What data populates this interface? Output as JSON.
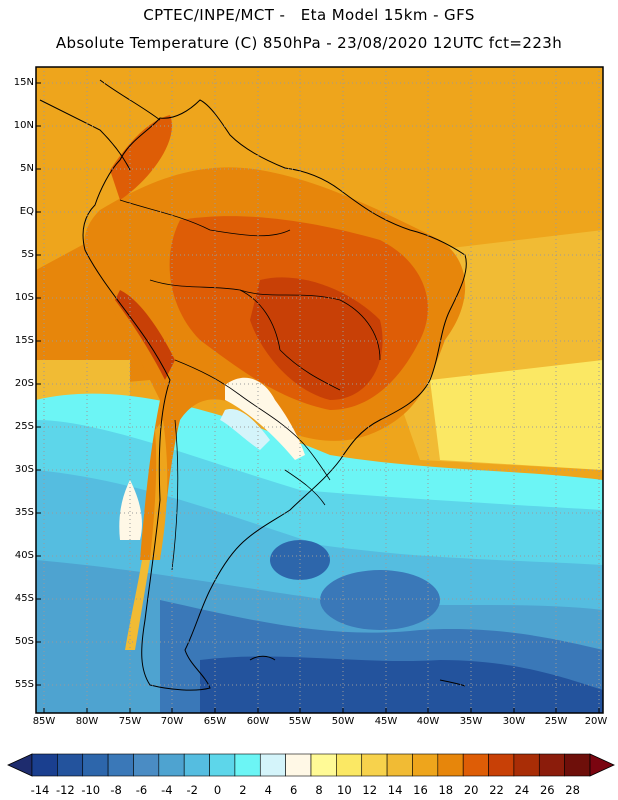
{
  "header": {
    "line1": "CPTEC/INPE/MCT -   Eta Model 15km - GFS",
    "line2": "Absolute Temperature (C) 850hPa - 23/08/2020 12UTC fct=223h"
  },
  "lat_labels": [
    "15N",
    "10N",
    "5N",
    "EQ",
    "5S",
    "10S",
    "15S",
    "20S",
    "25S",
    "30S",
    "35S",
    "40S",
    "45S",
    "50S",
    "55S"
  ],
  "lon_labels": [
    "85W",
    "80W",
    "75W",
    "70W",
    "65W",
    "60W",
    "55W",
    "50W",
    "45W",
    "40W",
    "35W",
    "30W",
    "25W",
    "20W"
  ],
  "colorbar": {
    "labels": [
      "-14",
      "-12",
      "-10",
      "-8",
      "-6",
      "-4",
      "-2",
      "0",
      "2",
      "4",
      "6",
      "8",
      "10",
      "12",
      "14",
      "16",
      "18",
      "20",
      "22",
      "24",
      "26",
      "28"
    ],
    "colors": [
      "#1a3f8f",
      "#23539d",
      "#2d66ab",
      "#3a78b8",
      "#4a8cc4",
      "#4ea3d0",
      "#55bde0",
      "#5dd6ea",
      "#6cf5f5",
      "#d4f4fa",
      "#fff8e6",
      "#fffa96",
      "#fbe864",
      "#f7d24c",
      "#f1bb34",
      "#eea51c",
      "#e7860b",
      "#de5d06",
      "#c84006",
      "#a92d06",
      "#8b1c0b",
      "#6e0f0a"
    ],
    "left_arrow_color": "#1e2c6e",
    "right_arrow_color": "#7a0510"
  }
}
